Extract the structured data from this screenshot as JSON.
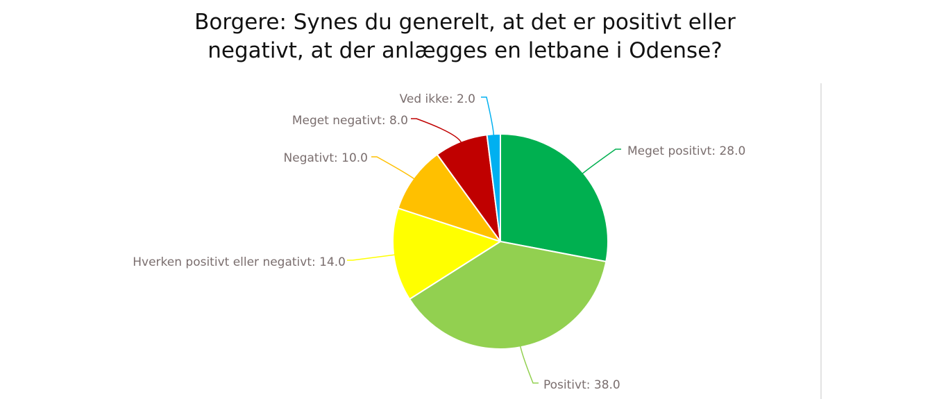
{
  "chart_data": {
    "type": "pie",
    "title_lines": [
      "Borgere: Synes du generelt, at det er positivt eller",
      "negativt, at der anlægges en letbane i Odense?"
    ],
    "slices": [
      {
        "label": "Meget positivt",
        "value": 28.0,
        "display": "Meget positivt: 28.0",
        "color": "#00b050"
      },
      {
        "label": "Positivt",
        "value": 38.0,
        "display": "Positivt: 38.0",
        "color": "#92d050"
      },
      {
        "label": "Hverken positivt eller negativt",
        "value": 14.0,
        "display": "Hverken positivt eller negativt: 14.0",
        "color": "#ffff00"
      },
      {
        "label": "Negativt",
        "value": 10.0,
        "display": "Negativt: 10.0",
        "color": "#ffc000"
      },
      {
        "label": "Meget negativt",
        "value": 8.0,
        "display": "Meget negativt: 8.0",
        "color": "#c00000"
      },
      {
        "label": "Ved ikke",
        "value": 2.0,
        "display": "Ved ikke: 2.0",
        "color": "#00b0f0"
      }
    ]
  }
}
